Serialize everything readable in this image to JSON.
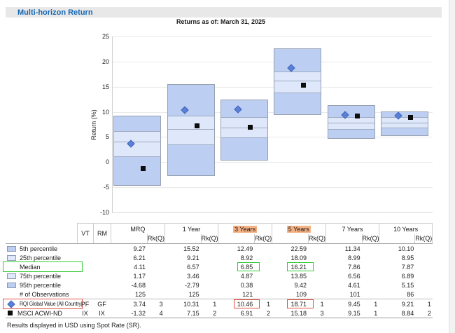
{
  "panel": {
    "title": "Multi-horizon Return"
  },
  "footer": {
    "note": "Results displayed in USD using Spot Rate (SR)."
  },
  "colors": {
    "band_outer": "#bccef2",
    "band_inner": "#dfe8fa",
    "box_border": "#96a0b0",
    "rqi_marker": "#5b80d4",
    "benchmark_marker": "#0d0d0d",
    "header_highlight": "#f5b183",
    "median_outline": "#33cc33",
    "rqi_outline": "#dd5244",
    "panel_title_blue": "#1668b2",
    "panel_header_bg": "#e8e8e8"
  },
  "chart_data": {
    "type": "percentile-box",
    "title": "Returns as of: March 31, 2025",
    "ylabel": "Return (%)",
    "ylim": [
      -10,
      25
    ],
    "ytick_step": 5,
    "grid": true,
    "categories": [
      "MRQ",
      "1 Year",
      "3 Years",
      "5 Years",
      "7 Years",
      "10 Years"
    ],
    "series": [
      {
        "name": "5th percentile",
        "values": [
          9.27,
          15.52,
          12.49,
          22.59,
          11.34,
          10.1
        ]
      },
      {
        "name": "25th percentile",
        "values": [
          6.21,
          9.21,
          8.92,
          18.09,
          8.99,
          8.95
        ]
      },
      {
        "name": "Median",
        "values": [
          4.11,
          6.57,
          6.85,
          16.21,
          7.86,
          7.87
        ]
      },
      {
        "name": "75th percentile",
        "values": [
          1.17,
          3.46,
          4.87,
          13.85,
          6.56,
          6.89
        ]
      },
      {
        "name": "95th percentile",
        "values": [
          -4.68,
          -2.79,
          0.38,
          9.42,
          4.61,
          5.15
        ]
      },
      {
        "name": "RQI Global Value (All Country)",
        "marker": "diamond",
        "values": [
          3.74,
          10.31,
          10.46,
          18.71,
          9.45,
          9.21
        ]
      },
      {
        "name": "MSCI ACWI-ND",
        "marker": "square",
        "values": [
          -1.32,
          7.15,
          6.91,
          15.18,
          9.15,
          8.84
        ]
      }
    ]
  },
  "table": {
    "vt_header": "VT",
    "rm_header": "RM",
    "rk_header": "Rk(Q)",
    "columns": [
      "MRQ",
      "1 Year",
      "3 Years",
      "5 Years",
      "7 Years",
      "10 Years"
    ],
    "highlighted_columns": [
      "3 Years",
      "5 Years"
    ],
    "rows": [
      {
        "label": "5th percentile",
        "swatch": "dark",
        "values": [
          "9.27",
          "15.52",
          "12.49",
          "22.59",
          "11.34",
          "10.10"
        ]
      },
      {
        "label": "25th percentile",
        "swatch": "light",
        "values": [
          "6.21",
          "9.21",
          "8.92",
          "18.09",
          "8.99",
          "8.95"
        ]
      },
      {
        "label": "Median",
        "label_outline": "green",
        "values": [
          "4.11",
          "6.57",
          "6.85",
          "16.21",
          "7.86",
          "7.87"
        ],
        "value_outlines": {
          "2": "green",
          "3": "green"
        }
      },
      {
        "label": "75th percentile",
        "swatch": "light",
        "values": [
          "1.17",
          "3.46",
          "4.87",
          "13.85",
          "6.56",
          "6.89"
        ]
      },
      {
        "label": "95th percentile",
        "swatch": "dark",
        "values": [
          "-4.68",
          "-2.79",
          "0.38",
          "9.42",
          "4.61",
          "5.15"
        ]
      },
      {
        "label": "# of Observations",
        "values": [
          "125",
          "125",
          "121",
          "109",
          "101",
          "86"
        ]
      },
      {
        "label": "RQI Global Value (All Country)",
        "icon": "diamond",
        "label_outline": "red",
        "condensed": true,
        "separator_above": true,
        "vt": "PF",
        "rm": "GF",
        "values": [
          "3.74",
          "10.31",
          "10.46",
          "18.71",
          "9.45",
          "9.21"
        ],
        "ranks": [
          "3",
          "1",
          "1",
          "1",
          "1",
          "1"
        ],
        "value_outlines": {
          "2": "red",
          "3": "red"
        }
      },
      {
        "label": "MSCI ACWI-ND",
        "icon": "square",
        "vt": "IX",
        "rm": "IX",
        "values": [
          "-1.32",
          "7.15",
          "6.91",
          "15.18",
          "9.15",
          "8.84"
        ],
        "ranks": [
          "4",
          "2",
          "2",
          "3",
          "1",
          "2"
        ]
      }
    ]
  }
}
